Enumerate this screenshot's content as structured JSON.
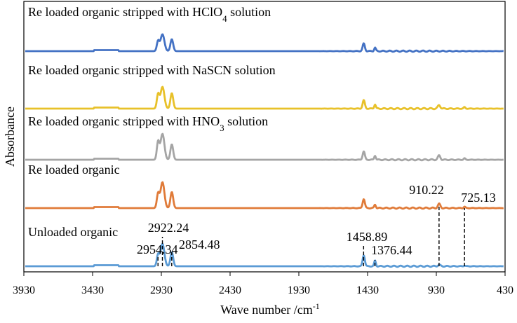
{
  "chart_data": {
    "type": "line",
    "xlabel": "Wave number /cm",
    "xlabel_sup": "-1",
    "ylabel": "Absorbance",
    "xlim": [
      3930,
      430
    ],
    "x_reversed": true,
    "xticks": [
      3930,
      3430,
      2930,
      2430,
      1930,
      1430,
      930,
      430
    ],
    "grid": false,
    "series": [
      {
        "name": "Re loaded organic stripped with HClO",
        "name_sub": "4",
        "name_suffix": " solution",
        "color": "#4472c4",
        "baseline": 73,
        "peaks": [
          {
            "x": 2954,
            "h": 14
          },
          {
            "x": 2922,
            "h": 24
          },
          {
            "x": 2854,
            "h": 17
          },
          {
            "x": 1458,
            "h": 11
          },
          {
            "x": 1376,
            "h": 5
          }
        ]
      },
      {
        "name": "Re loaded organic stripped with NaSCN solution",
        "color": "#e8c12a",
        "baseline": 155,
        "peaks": [
          {
            "x": 2954,
            "h": 20
          },
          {
            "x": 2922,
            "h": 31
          },
          {
            "x": 2854,
            "h": 22
          },
          {
            "x": 1458,
            "h": 12
          },
          {
            "x": 1376,
            "h": 6
          },
          {
            "x": 910,
            "h": 5
          },
          {
            "x": 725,
            "h": 2
          }
        ]
      },
      {
        "name": "Re loaded organic stripped with HNO",
        "name_sub": "3",
        "name_suffix": " solution",
        "color": "#a5a5a5",
        "baseline": 228,
        "peaks": [
          {
            "x": 2954,
            "h": 25
          },
          {
            "x": 2922,
            "h": 37
          },
          {
            "x": 2854,
            "h": 22
          },
          {
            "x": 1458,
            "h": 12
          },
          {
            "x": 1376,
            "h": 6
          },
          {
            "x": 910,
            "h": 6
          },
          {
            "x": 725,
            "h": 2
          }
        ]
      },
      {
        "name": "Re loaded organic",
        "color": "#e07b39",
        "baseline": 297,
        "peaks": [
          {
            "x": 2954,
            "h": 20
          },
          {
            "x": 2922,
            "h": 37
          },
          {
            "x": 2854,
            "h": 23
          },
          {
            "x": 1458,
            "h": 13
          },
          {
            "x": 1376,
            "h": 5
          },
          {
            "x": 910,
            "h": 6
          },
          {
            "x": 725,
            "h": 2
          }
        ]
      },
      {
        "name": "Unloaded organic",
        "color": "#5b9bd5",
        "baseline": 380,
        "peaks": [
          {
            "x": 2954,
            "h": 16
          },
          {
            "x": 2922,
            "h": 32
          },
          {
            "x": 2854,
            "h": 20
          },
          {
            "x": 1458,
            "h": 16
          },
          {
            "x": 1376,
            "h": 8
          },
          {
            "x": 910,
            "h": 2
          },
          {
            "x": 725,
            "h": 1
          }
        ]
      }
    ],
    "annotations": [
      {
        "label": "2954.34",
        "x": 2954.34
      },
      {
        "label": "2922.24",
        "x": 2922.24
      },
      {
        "label": "2854.48",
        "x": 2854.48
      },
      {
        "label": "1458.89",
        "x": 1458.89
      },
      {
        "label": "1376.44",
        "x": 1376.44
      },
      {
        "label": "910.22",
        "x": 910.22
      },
      {
        "label": "725.13",
        "x": 725.13
      }
    ]
  }
}
